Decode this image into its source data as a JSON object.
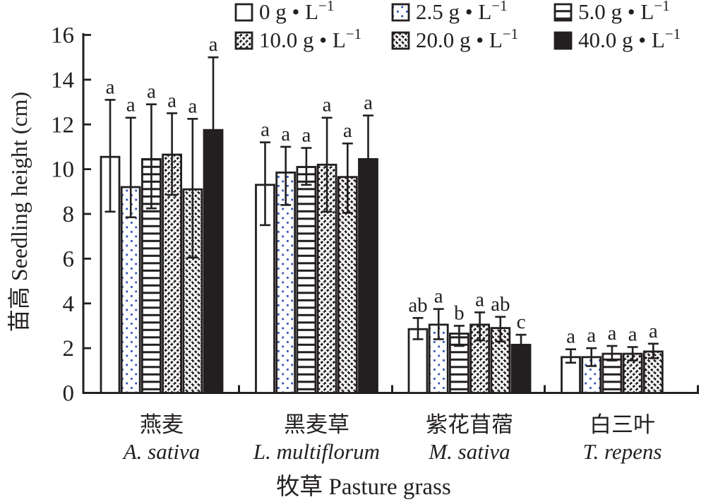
{
  "figure": {
    "background": "#ffffff",
    "ink_color": "#231f20",
    "dot_color": "#3857b8"
  },
  "chart_data": {
    "type": "bar",
    "title": "",
    "ylabel": "苗高 Seedling height (cm)",
    "xlabel": "牧草 Pasture grass",
    "ylim": [
      0,
      16
    ],
    "ytick_step": 2,
    "grid": "off",
    "legend_position": "top",
    "legend_unit_base": "g • L",
    "legend_unit_sup": "−1",
    "categories": [
      {
        "zh": "燕麦",
        "latin": "A. sativa"
      },
      {
        "zh": "黑麦草",
        "latin": "L. multiflorum"
      },
      {
        "zh": "紫花苜蓿",
        "latin": "M. sativa"
      },
      {
        "zh": "白三叶",
        "latin": "T. repens"
      }
    ],
    "series": [
      {
        "name": "0 g·L−1",
        "conc": "0",
        "pattern": "plain",
        "values": [
          10.55,
          9.3,
          2.85,
          1.6
        ],
        "err_hi": [
          13.1,
          11.2,
          3.35,
          1.95
        ],
        "err_lo": [
          8.1,
          7.5,
          2.4,
          1.35
        ],
        "letters": [
          "a",
          "a",
          "ab",
          "a"
        ]
      },
      {
        "name": "2.5 g·L−1",
        "conc": "2.5",
        "pattern": "dots",
        "values": [
          9.2,
          9.85,
          3.05,
          1.6
        ],
        "err_hi": [
          12.3,
          11.0,
          3.75,
          2.0
        ],
        "err_lo": [
          7.85,
          8.4,
          2.4,
          1.2
        ],
        "letters": [
          "a",
          "a",
          "a",
          "a"
        ]
      },
      {
        "name": "5.0 g·L−1",
        "conc": "5.0",
        "pattern": "hlines",
        "values": [
          10.45,
          10.1,
          2.65,
          1.75
        ],
        "err_hi": [
          12.9,
          10.95,
          3.0,
          2.1
        ],
        "err_lo": [
          8.25,
          9.3,
          2.1,
          1.45
        ],
        "letters": [
          "a",
          "a",
          "b",
          "a"
        ]
      },
      {
        "name": "10.0 g·L−1",
        "conc": "10.0",
        "pattern": "diag-forward",
        "values": [
          10.65,
          10.2,
          3.05,
          1.75
        ],
        "err_hi": [
          12.5,
          12.3,
          3.6,
          2.05
        ],
        "err_lo": [
          8.85,
          8.1,
          2.35,
          1.45
        ],
        "letters": [
          "a",
          "a",
          "a",
          "a"
        ]
      },
      {
        "name": "20.0 g·L−1",
        "conc": "20.0",
        "pattern": "diag-back",
        "values": [
          9.1,
          9.65,
          2.9,
          1.85
        ],
        "err_hi": [
          12.25,
          11.15,
          3.4,
          2.2
        ],
        "err_lo": [
          6.05,
          8.05,
          2.3,
          1.55
        ],
        "letters": [
          "a",
          "a",
          "ab",
          "a"
        ]
      },
      {
        "name": "40.0 g·L−1",
        "conc": "40.0",
        "pattern": "solid",
        "values": [
          11.75,
          10.45,
          2.15,
          null
        ],
        "err_hi": [
          15.0,
          12.4,
          2.6,
          null
        ],
        "err_lo": [
          8.4,
          8.6,
          1.7,
          null
        ],
        "letters": [
          "a",
          "a",
          "c",
          null
        ]
      }
    ]
  }
}
